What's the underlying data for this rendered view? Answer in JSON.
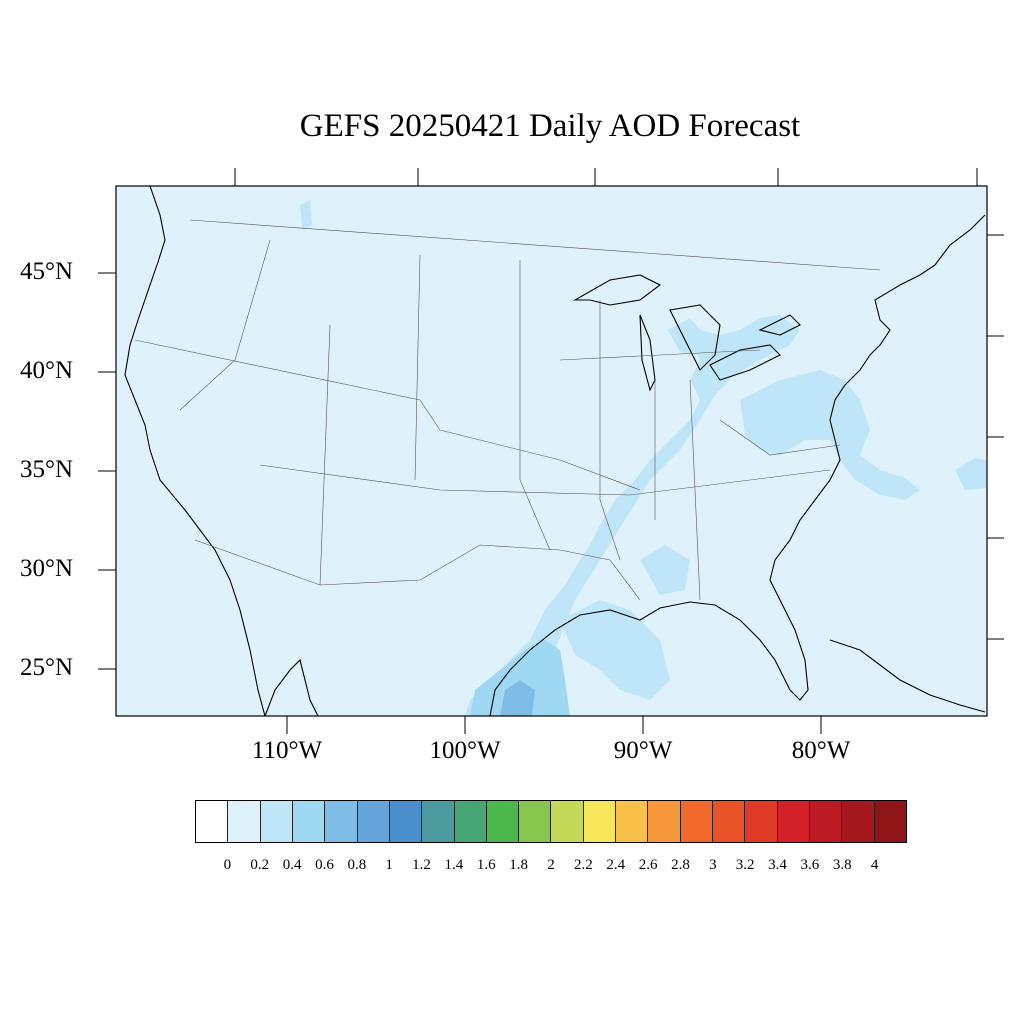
{
  "title": "GEFS 20250421 Daily AOD Forecast",
  "map": {
    "region": "Contiguous United States",
    "background_color": "#dff2fb",
    "lat_ticks": [
      {
        "value": 45,
        "label": "45°N"
      },
      {
        "value": 40,
        "label": "40°N"
      },
      {
        "value": 35,
        "label": "35°N"
      },
      {
        "value": 30,
        "label": "30°N"
      },
      {
        "value": 25,
        "label": "25°N"
      }
    ],
    "lon_ticks": [
      {
        "value": -110,
        "label": "110°W"
      },
      {
        "value": -100,
        "label": "100°W"
      },
      {
        "value": -90,
        "label": "90°W"
      },
      {
        "value": -80,
        "label": "80°W"
      }
    ]
  },
  "colorbar": {
    "colors": [
      "#ffffff",
      "#dff2fb",
      "#bfe6f8",
      "#9fd8f3",
      "#80bde6",
      "#66a5da",
      "#4a8fcc",
      "#4a9a9e",
      "#47a676",
      "#4ab84a",
      "#86c64c",
      "#c4d957",
      "#f6e65a",
      "#f8c24a",
      "#f7983d",
      "#f26a2c",
      "#ea5228",
      "#e03a27",
      "#d42028",
      "#bd1b24",
      "#a5181e",
      "#8f1518"
    ],
    "labels": [
      "0",
      "0.2",
      "0.4",
      "0.6",
      "0.8",
      "1",
      "1.2",
      "1.4",
      "1.6",
      "1.8",
      "2",
      "2.2",
      "2.4",
      "2.6",
      "2.8",
      "3",
      "3.2",
      "3.4",
      "3.6",
      "3.8",
      "4"
    ]
  }
}
